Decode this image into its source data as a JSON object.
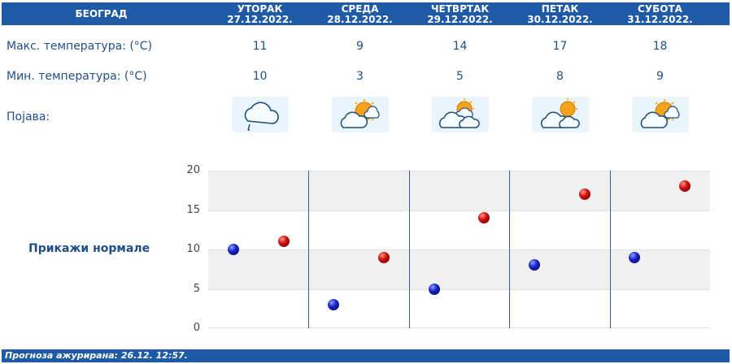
{
  "header": {
    "city": "БЕОГРАД",
    "days": [
      {
        "name": "УТОРАК",
        "date": "27.12.2022."
      },
      {
        "name": "СРЕДА",
        "date": "28.12.2022."
      },
      {
        "name": "ЧЕТВРТАК",
        "date": "29.12.2022."
      },
      {
        "name": "ПЕТАК",
        "date": "30.12.2022."
      },
      {
        "name": "СУБОТА",
        "date": "31.12.2022."
      }
    ]
  },
  "rows": {
    "max_label": "Макс. температура: (°C)",
    "min_label": "Мин. температура: (°C)",
    "phenomenon_label": "Појава:",
    "max_values": [
      "11",
      "9",
      "14",
      "17",
      "18"
    ],
    "min_values": [
      "10",
      "3",
      "5",
      "8",
      "9"
    ],
    "icons": [
      "cloud-rain-icon",
      "sun-cloud-icon",
      "cloud-sun-icon",
      "cloud-sun-icon",
      "sun-cloud-icon"
    ]
  },
  "normals_link": "Прикажи нормале",
  "chart_data": {
    "type": "scatter",
    "categories": [
      "27.12.2022.",
      "28.12.2022.",
      "29.12.2022.",
      "30.12.2022.",
      "31.12.2022."
    ],
    "series": [
      {
        "values": [
          10,
          3,
          5,
          8,
          9
        ],
        "color": "#1b24c8"
      },
      {
        "values": [
          11,
          9,
          14,
          17,
          18
        ],
        "color": "#d01010"
      }
    ],
    "ylim": [
      0,
      20
    ],
    "yticks": [
      "0",
      "5",
      "10",
      "15",
      "20"
    ],
    "grid": true
  },
  "footer": "Прогноза ажурирана:  26.12. 12:57."
}
